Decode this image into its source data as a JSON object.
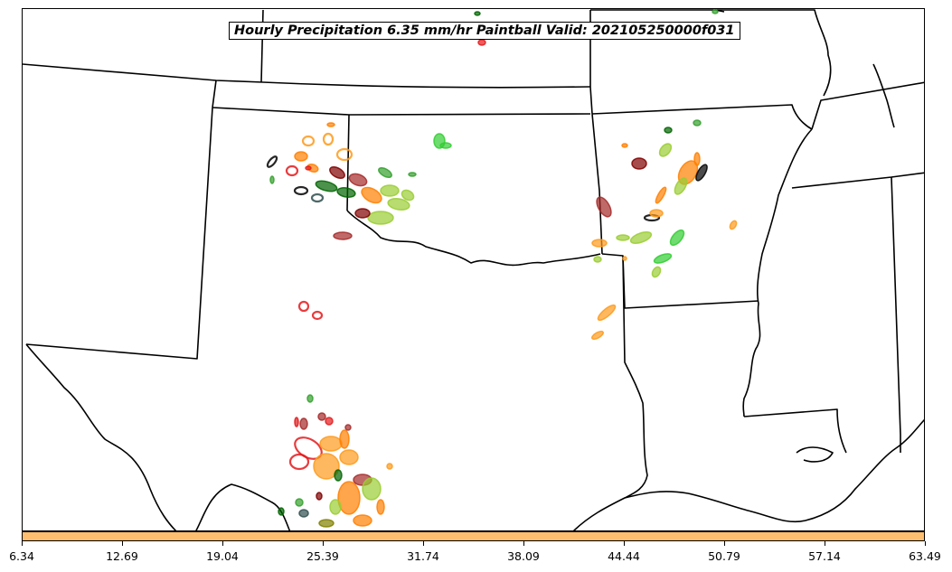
{
  "title": "Hourly Precipitation 6.35 mm/hr Paintball Valid: 202105250000f031",
  "colorbar": {
    "color": "#fdbf6f",
    "ticks": [
      "6.34",
      "12.69",
      "19.04",
      "25.39",
      "31.74",
      "38.09",
      "44.44",
      "50.79",
      "57.14",
      "63.49"
    ]
  },
  "member_colors": [
    "#e31a1c",
    "#ff7f00",
    "#fd9a1c",
    "#33a02c",
    "#32cd32",
    "#006400",
    "#808000",
    "#9acd32",
    "#800000",
    "#a52a2a",
    "#000000",
    "#2f4f4f"
  ],
  "map": {
    "type": "paintball",
    "region": "South-Central United States"
  }
}
